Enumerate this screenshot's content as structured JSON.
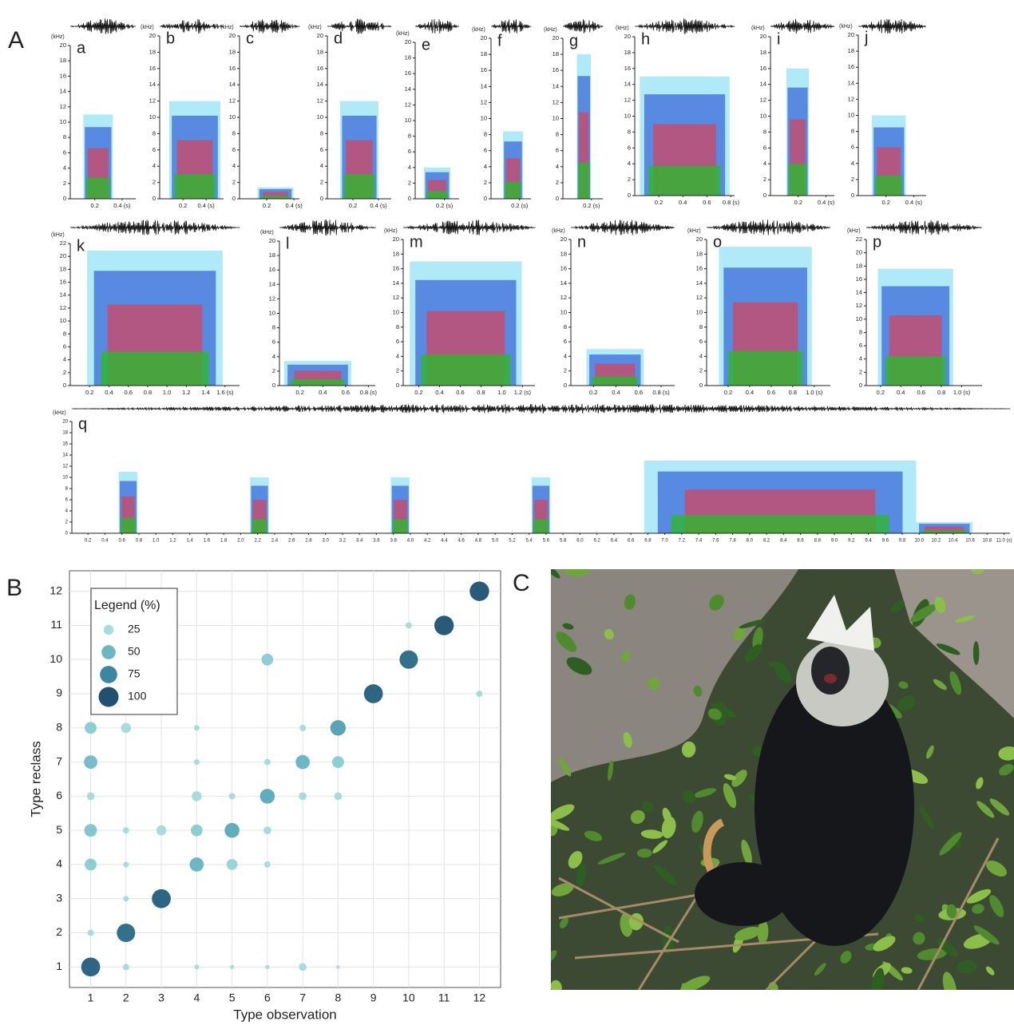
{
  "panel_labels": [
    "A",
    "B",
    "C"
  ],
  "spectrograms": {
    "y_unit": "(kHz)",
    "items": [
      {
        "label": "a",
        "xlim": [
          0.02,
          0.5
        ],
        "ylim": [
          0,
          20
        ],
        "yticks": [
          0,
          2,
          4,
          6,
          8,
          10,
          12,
          14,
          16,
          18,
          20
        ],
        "xticks": [
          0.2,
          {
            "value": 0.4,
            "label": "0.4 (s)"
          }
        ]
      },
      {
        "label": "b",
        "xlim": [
          0,
          0.55
        ],
        "ylim": [
          0,
          20
        ],
        "yticks": [
          0,
          2,
          4,
          6,
          8,
          10,
          12,
          14,
          16,
          18,
          20
        ],
        "xticks": [
          0.2,
          {
            "value": 0.4,
            "label": "0.4 (s)"
          }
        ]
      },
      {
        "label": "c",
        "xlim": [
          0,
          0.44
        ],
        "ylim": [
          0,
          20
        ],
        "yticks": [
          0,
          2,
          4,
          6,
          8,
          10,
          12,
          14,
          16,
          18,
          20
        ],
        "xticks": [
          0.2,
          {
            "value": 0.4,
            "label": "0.4 (s)"
          }
        ]
      },
      {
        "label": "d",
        "xlim": [
          0,
          0.5
        ],
        "ylim": [
          0,
          20
        ],
        "yticks": [
          0,
          2,
          4,
          6,
          8,
          10,
          12,
          14,
          16,
          18,
          20
        ],
        "xticks": [
          0.2,
          {
            "value": 0.4,
            "label": "0.4 (s)"
          }
        ]
      },
      {
        "label": "e",
        "xlim": [
          0,
          0.3
        ],
        "ylim": [
          0,
          20
        ],
        "yticks": [
          0,
          2,
          4,
          6,
          8,
          10,
          12,
          14,
          16,
          18,
          20
        ],
        "xticks": [
          {
            "value": 0.2,
            "label": "0.2 (s)"
          }
        ]
      },
      {
        "label": "f",
        "xlim": [
          0,
          0.28
        ],
        "ylim": [
          0,
          20
        ],
        "yticks": [
          0,
          2,
          4,
          6,
          8,
          10,
          12,
          14,
          16,
          18,
          20
        ],
        "xticks": [
          {
            "value": 0.2,
            "label": "0.2 (s)"
          }
        ]
      },
      {
        "label": "g",
        "xlim": [
          0,
          0.28
        ],
        "ylim": [
          0,
          20
        ],
        "yticks": [
          0,
          2,
          4,
          6,
          8,
          10,
          12,
          14,
          16,
          18,
          20
        ],
        "xticks": [
          {
            "value": 0.2,
            "label": "0.2 (s)"
          }
        ]
      },
      {
        "label": "h",
        "xlim": [
          0,
          0.83
        ],
        "ylim": [
          0,
          20
        ],
        "yticks": [
          0,
          2,
          4,
          6,
          8,
          10,
          12,
          14,
          16,
          18,
          20
        ],
        "xticks": [
          0.2,
          0.4,
          0.6,
          {
            "value": 0.8,
            "label": "0.8 (s)"
          }
        ]
      },
      {
        "label": "i",
        "xlim": [
          0,
          0.46
        ],
        "ylim": [
          0,
          20
        ],
        "yticks": [
          0,
          2,
          4,
          6,
          8,
          10,
          12,
          14,
          16,
          18,
          20
        ],
        "xticks": [
          0.2,
          {
            "value": 0.4,
            "label": "0.4 (s)"
          }
        ]
      },
      {
        "label": "j",
        "xlim": [
          0,
          0.49
        ],
        "ylim": [
          0,
          20
        ],
        "yticks": [
          0,
          2,
          4,
          6,
          8,
          10,
          12,
          14,
          16,
          18,
          20
        ],
        "xticks": [
          0.2,
          {
            "value": 0.4,
            "label": "0.4 (s)"
          }
        ]
      },
      {
        "label": "k",
        "xlim": [
          0,
          1.75
        ],
        "ylim": [
          0,
          22
        ],
        "yticks": [
          0,
          2,
          4,
          6,
          8,
          10,
          12,
          14,
          16,
          18,
          20,
          22
        ],
        "xticks": [
          0.2,
          0.4,
          0.6,
          0.8,
          {
            "value": 1,
            "label": "1.0"
          },
          1.2,
          1.4,
          {
            "value": 1.6,
            "label": "1.6 (s)"
          }
        ]
      },
      {
        "label": "l",
        "xlim": [
          0.02,
          0.86
        ],
        "ylim": [
          0,
          20
        ],
        "yticks": [
          0,
          2,
          4,
          6,
          8,
          10,
          12,
          14,
          16,
          18,
          20
        ],
        "xticks": [
          0.2,
          0.4,
          0.6,
          {
            "value": 0.8,
            "label": "0.8 (s)"
          }
        ]
      },
      {
        "label": "m",
        "xlim": [
          0.05,
          1.32
        ],
        "ylim": [
          0,
          20
        ],
        "yticks": [
          0,
          2,
          4,
          6,
          8,
          10,
          12,
          14,
          16,
          18,
          20
        ],
        "xticks": [
          0.2,
          0.4,
          0.6,
          0.8,
          {
            "value": 1,
            "label": "1.0"
          },
          {
            "value": 1.2,
            "label": "1.2 (s)"
          }
        ]
      },
      {
        "label": "n",
        "xlim": [
          0,
          0.92
        ],
        "ylim": [
          0,
          20
        ],
        "yticks": [
          0,
          2,
          4,
          6,
          8,
          10,
          12,
          14,
          16,
          18,
          20
        ],
        "xticks": [
          0.2,
          0.4,
          0.6,
          {
            "value": 0.8,
            "label": "0.8 (s)"
          }
        ]
      },
      {
        "label": "o",
        "xlim": [
          0,
          1.15
        ],
        "ylim": [
          0,
          20
        ],
        "yticks": [
          0,
          2,
          4,
          6,
          8,
          10,
          12,
          14,
          16,
          18,
          20
        ],
        "xticks": [
          0.2,
          0.4,
          0.6,
          0.8,
          {
            "value": 1,
            "label": "1.0 (s)"
          }
        ]
      },
      {
        "label": "p",
        "xlim": [
          0.06,
          1.2
        ],
        "ylim": [
          0,
          22
        ],
        "yticks": [
          0,
          2,
          4,
          6,
          8,
          10,
          12,
          14,
          16,
          18,
          20,
          22
        ],
        "xticks": [
          0.2,
          0.4,
          0.6,
          0.8,
          {
            "value": 1,
            "label": "1.0 (s)"
          }
        ]
      },
      {
        "label": "q",
        "xlim": [
          0.01,
          11.07
        ],
        "ylim": [
          0,
          20
        ],
        "yticks": [
          0,
          2,
          4,
          6,
          8,
          10,
          12,
          14,
          16,
          18,
          20
        ],
        "xticks": [
          0.2,
          0.4,
          0.6,
          0.8,
          {
            "value": 1,
            "label": "1.0"
          },
          1.2,
          1.4,
          1.6,
          1.8,
          {
            "value": 2,
            "label": "2.0"
          },
          2.2,
          2.4,
          2.6,
          2.8,
          {
            "value": 3,
            "label": "3.0"
          },
          3.2,
          3.4,
          3.6,
          3.8,
          {
            "value": 4,
            "label": "4.0"
          },
          4.2,
          4.4,
          4.6,
          4.8,
          {
            "value": 5,
            "label": "5.0"
          },
          5.2,
          5.4,
          5.6,
          5.8,
          {
            "value": 6,
            "label": "6.0"
          },
          6.2,
          6.4,
          6.6,
          6.8,
          {
            "value": 7,
            "label": "7.0"
          },
          7.2,
          7.4,
          7.6,
          7.8,
          {
            "value": 8,
            "label": "8.0"
          },
          8.2,
          8.4,
          8.6,
          8.8,
          {
            "value": 9,
            "label": "9.0"
          },
          9.2,
          9.4,
          9.6,
          9.8,
          {
            "value": 10,
            "label": "10.0"
          },
          10.2,
          10.4,
          10.6,
          10.8,
          {
            "value": 11,
            "label": "11.0 (s)"
          }
        ]
      }
    ]
  },
  "chart_data": {
    "type": "scatter",
    "xlabel": "Type observation",
    "ylabel": "Type reclass",
    "xlim": [
      0.4,
      12.6
    ],
    "ylim": [
      0.4,
      12.6
    ],
    "xticks": [
      1,
      2,
      3,
      4,
      5,
      6,
      7,
      8,
      9,
      10,
      11,
      12
    ],
    "yticks": [
      1,
      2,
      3,
      4,
      5,
      6,
      7,
      8,
      9,
      10,
      11,
      12
    ],
    "grid": true,
    "x": [
      1,
      1,
      1,
      1,
      1,
      1,
      1,
      2,
      2,
      2,
      2,
      2,
      2,
      3,
      3,
      4,
      4,
      4,
      4,
      4,
      4,
      5,
      5,
      5,
      5,
      6,
      6,
      6,
      6,
      6,
      6,
      7,
      7,
      7,
      7,
      8,
      8,
      8,
      8,
      9,
      10,
      10,
      11,
      12,
      12
    ],
    "y": [
      1,
      2,
      4,
      5,
      6,
      7,
      8,
      1,
      2,
      3,
      4,
      5,
      8,
      3,
      5,
      1,
      4,
      5,
      6,
      7,
      8,
      1,
      4,
      5,
      6,
      1,
      4,
      5,
      6,
      7,
      10,
      1,
      6,
      7,
      8,
      1,
      6,
      7,
      8,
      9,
      10,
      11,
      11,
      9,
      12
    ],
    "sizes": [
      90,
      10,
      35,
      40,
      15,
      45,
      35,
      10,
      85,
      8,
      8,
      10,
      25,
      90,
      25,
      6,
      50,
      35,
      25,
      8,
      8,
      4,
      30,
      55,
      10,
      4,
      10,
      15,
      55,
      10,
      35,
      15,
      15,
      50,
      10,
      3,
      15,
      35,
      60,
      90,
      85,
      10,
      95,
      10,
      95
    ],
    "legend": {
      "title": "Legend (%)",
      "position": "upper left",
      "sizes": [
        25,
        50,
        75,
        100
      ],
      "colors": [
        "#a6dcdc",
        "#6bb7c4",
        "#3b86a0",
        "#24506f"
      ]
    }
  }
}
